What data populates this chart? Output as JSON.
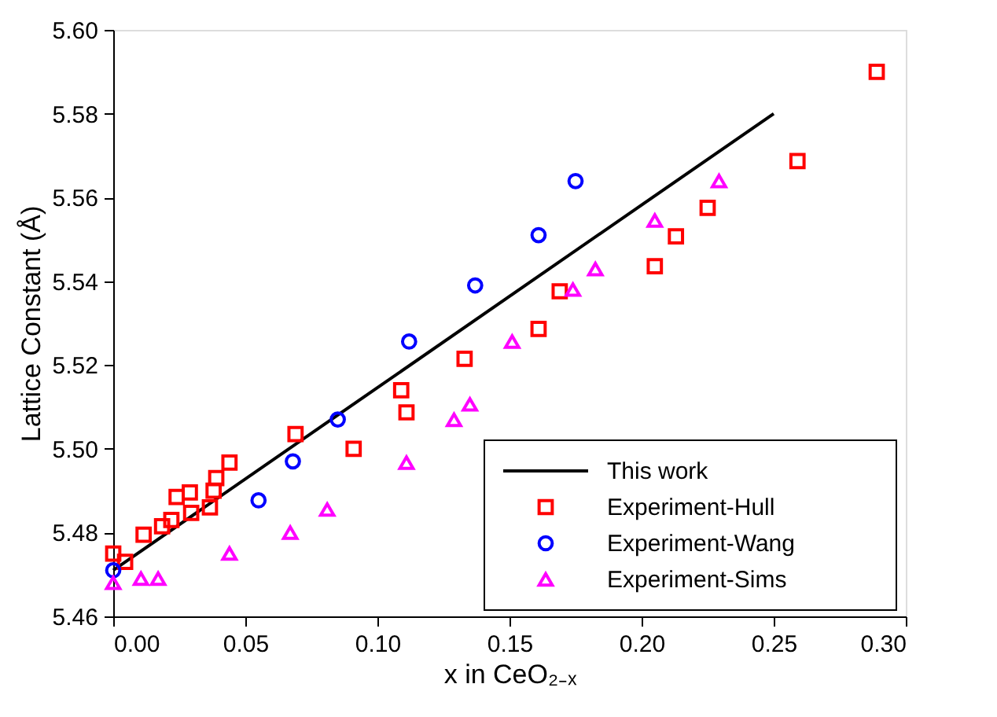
{
  "chart_data": {
    "type": "scatter",
    "xlabel": "x in CeO₂₋ₓ",
    "ylabel": "Lattice Constant (Å)",
    "xlim": [
      0,
      0.3
    ],
    "ylim": [
      5.46,
      5.6
    ],
    "xticks": [
      {
        "value": 0,
        "label": "0.00"
      },
      {
        "value": 0.05,
        "label": "0.05"
      },
      {
        "value": 0.1,
        "label": "0.10"
      },
      {
        "value": 0.15,
        "label": "0.15"
      },
      {
        "value": 0.2,
        "label": "0.20"
      },
      {
        "value": 0.25,
        "label": "0.25"
      },
      {
        "value": 0.3,
        "label": "0.30"
      }
    ],
    "yticks": [
      {
        "value": 5.46,
        "label": "5.46"
      },
      {
        "value": 5.48,
        "label": "5.48"
      },
      {
        "value": 5.5,
        "label": "5.50"
      },
      {
        "value": 5.52,
        "label": "5.52"
      },
      {
        "value": 5.54,
        "label": "5.54"
      },
      {
        "value": 5.56,
        "label": "5.56"
      },
      {
        "value": 5.58,
        "label": "5.58"
      },
      {
        "value": 5.6,
        "label": "5.60"
      }
    ],
    "grid": false,
    "legend": "bottom right",
    "series": [
      {
        "name": "This work",
        "type": "line",
        "color": "#000000",
        "marker": "none",
        "line_style": "solid",
        "x": [
          0,
          0.25
        ],
        "values": [
          5.471,
          5.58
        ]
      },
      {
        "name": "Experiment-Hull",
        "color": "#ff0000",
        "marker": "square",
        "x": [
          0,
          0.0045,
          0.0115,
          0.0185,
          0.022,
          0.024,
          0.029,
          0.0295,
          0.0366,
          0.038,
          0.039,
          0.044,
          0.069,
          0.091,
          0.109,
          0.111,
          0.133,
          0.161,
          0.169,
          0.205,
          0.213,
          0.225,
          0.259,
          0.289
        ],
        "values": [
          5.475,
          5.473,
          5.4795,
          5.4815,
          5.483,
          5.4885,
          5.4896,
          5.4847,
          5.486,
          5.49,
          5.493,
          5.4967,
          5.5035,
          5.5,
          5.514,
          5.5087,
          5.5215,
          5.5286,
          5.5376,
          5.5436,
          5.5507,
          5.5575,
          5.5687,
          5.59
        ]
      },
      {
        "name": "Experiment-Wang",
        "color": "#0000ff",
        "marker": "circle",
        "x": [
          0,
          0.055,
          0.068,
          0.085,
          0.112,
          0.137,
          0.161,
          0.175
        ],
        "values": [
          5.471,
          5.4877,
          5.497,
          5.507,
          5.5256,
          5.539,
          5.551,
          5.5639
        ]
      },
      {
        "name": "Experiment-Sims",
        "color": "#ff00ff",
        "marker": "triangle",
        "x": [
          0,
          0.0105,
          0.017,
          0.044,
          0.067,
          0.081,
          0.111,
          0.129,
          0.135,
          0.151,
          0.174,
          0.1825,
          0.205,
          0.2293
        ],
        "values": [
          5.468,
          5.469,
          5.469,
          5.475,
          5.48,
          5.4855,
          5.4967,
          5.5069,
          5.5106,
          5.5256,
          5.538,
          5.5429,
          5.5545,
          5.5639
        ]
      }
    ]
  }
}
